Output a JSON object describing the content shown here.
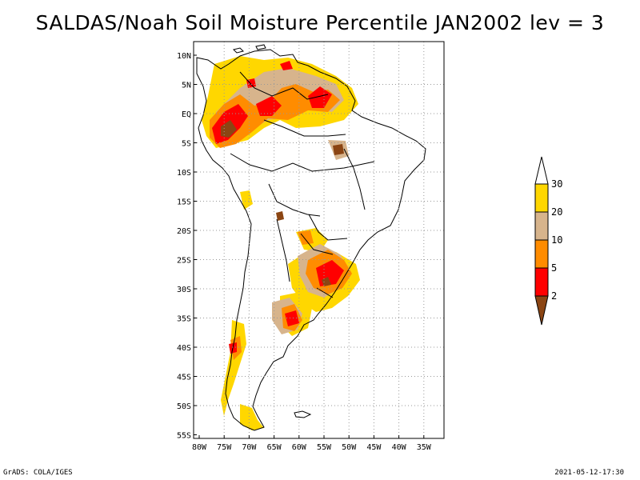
{
  "title": "SALDAS/Noah Soil Moisture Percentile JAN2002 lev = 3",
  "footer": {
    "left": "GrADS: COLA/IGES",
    "right": "2021-05-12-17:30"
  },
  "map": {
    "lat_ticks": [
      "10N",
      "5N",
      "EQ",
      "5S",
      "10S",
      "15S",
      "20S",
      "25S",
      "30S",
      "35S",
      "40S",
      "45S",
      "50S",
      "55S"
    ],
    "lon_ticks": [
      "80W",
      "75W",
      "70W",
      "65W",
      "60W",
      "55W",
      "50W",
      "45W",
      "40W",
      "35W"
    ],
    "lon_range": [
      "80W",
      "33W"
    ],
    "lat_range": [
      "55S",
      "12N"
    ],
    "grid": "dotted"
  },
  "colorbar": {
    "labels": [
      "30",
      "20",
      "10",
      "5",
      "2"
    ],
    "colors": {
      "above_30": "#ffffff",
      "c20_30": "#ffd700",
      "c10_20": "#d7b48c",
      "c5_10": "#ff8c00",
      "c2_5": "#ff0000",
      "below_2": "#8b4513"
    }
  }
}
